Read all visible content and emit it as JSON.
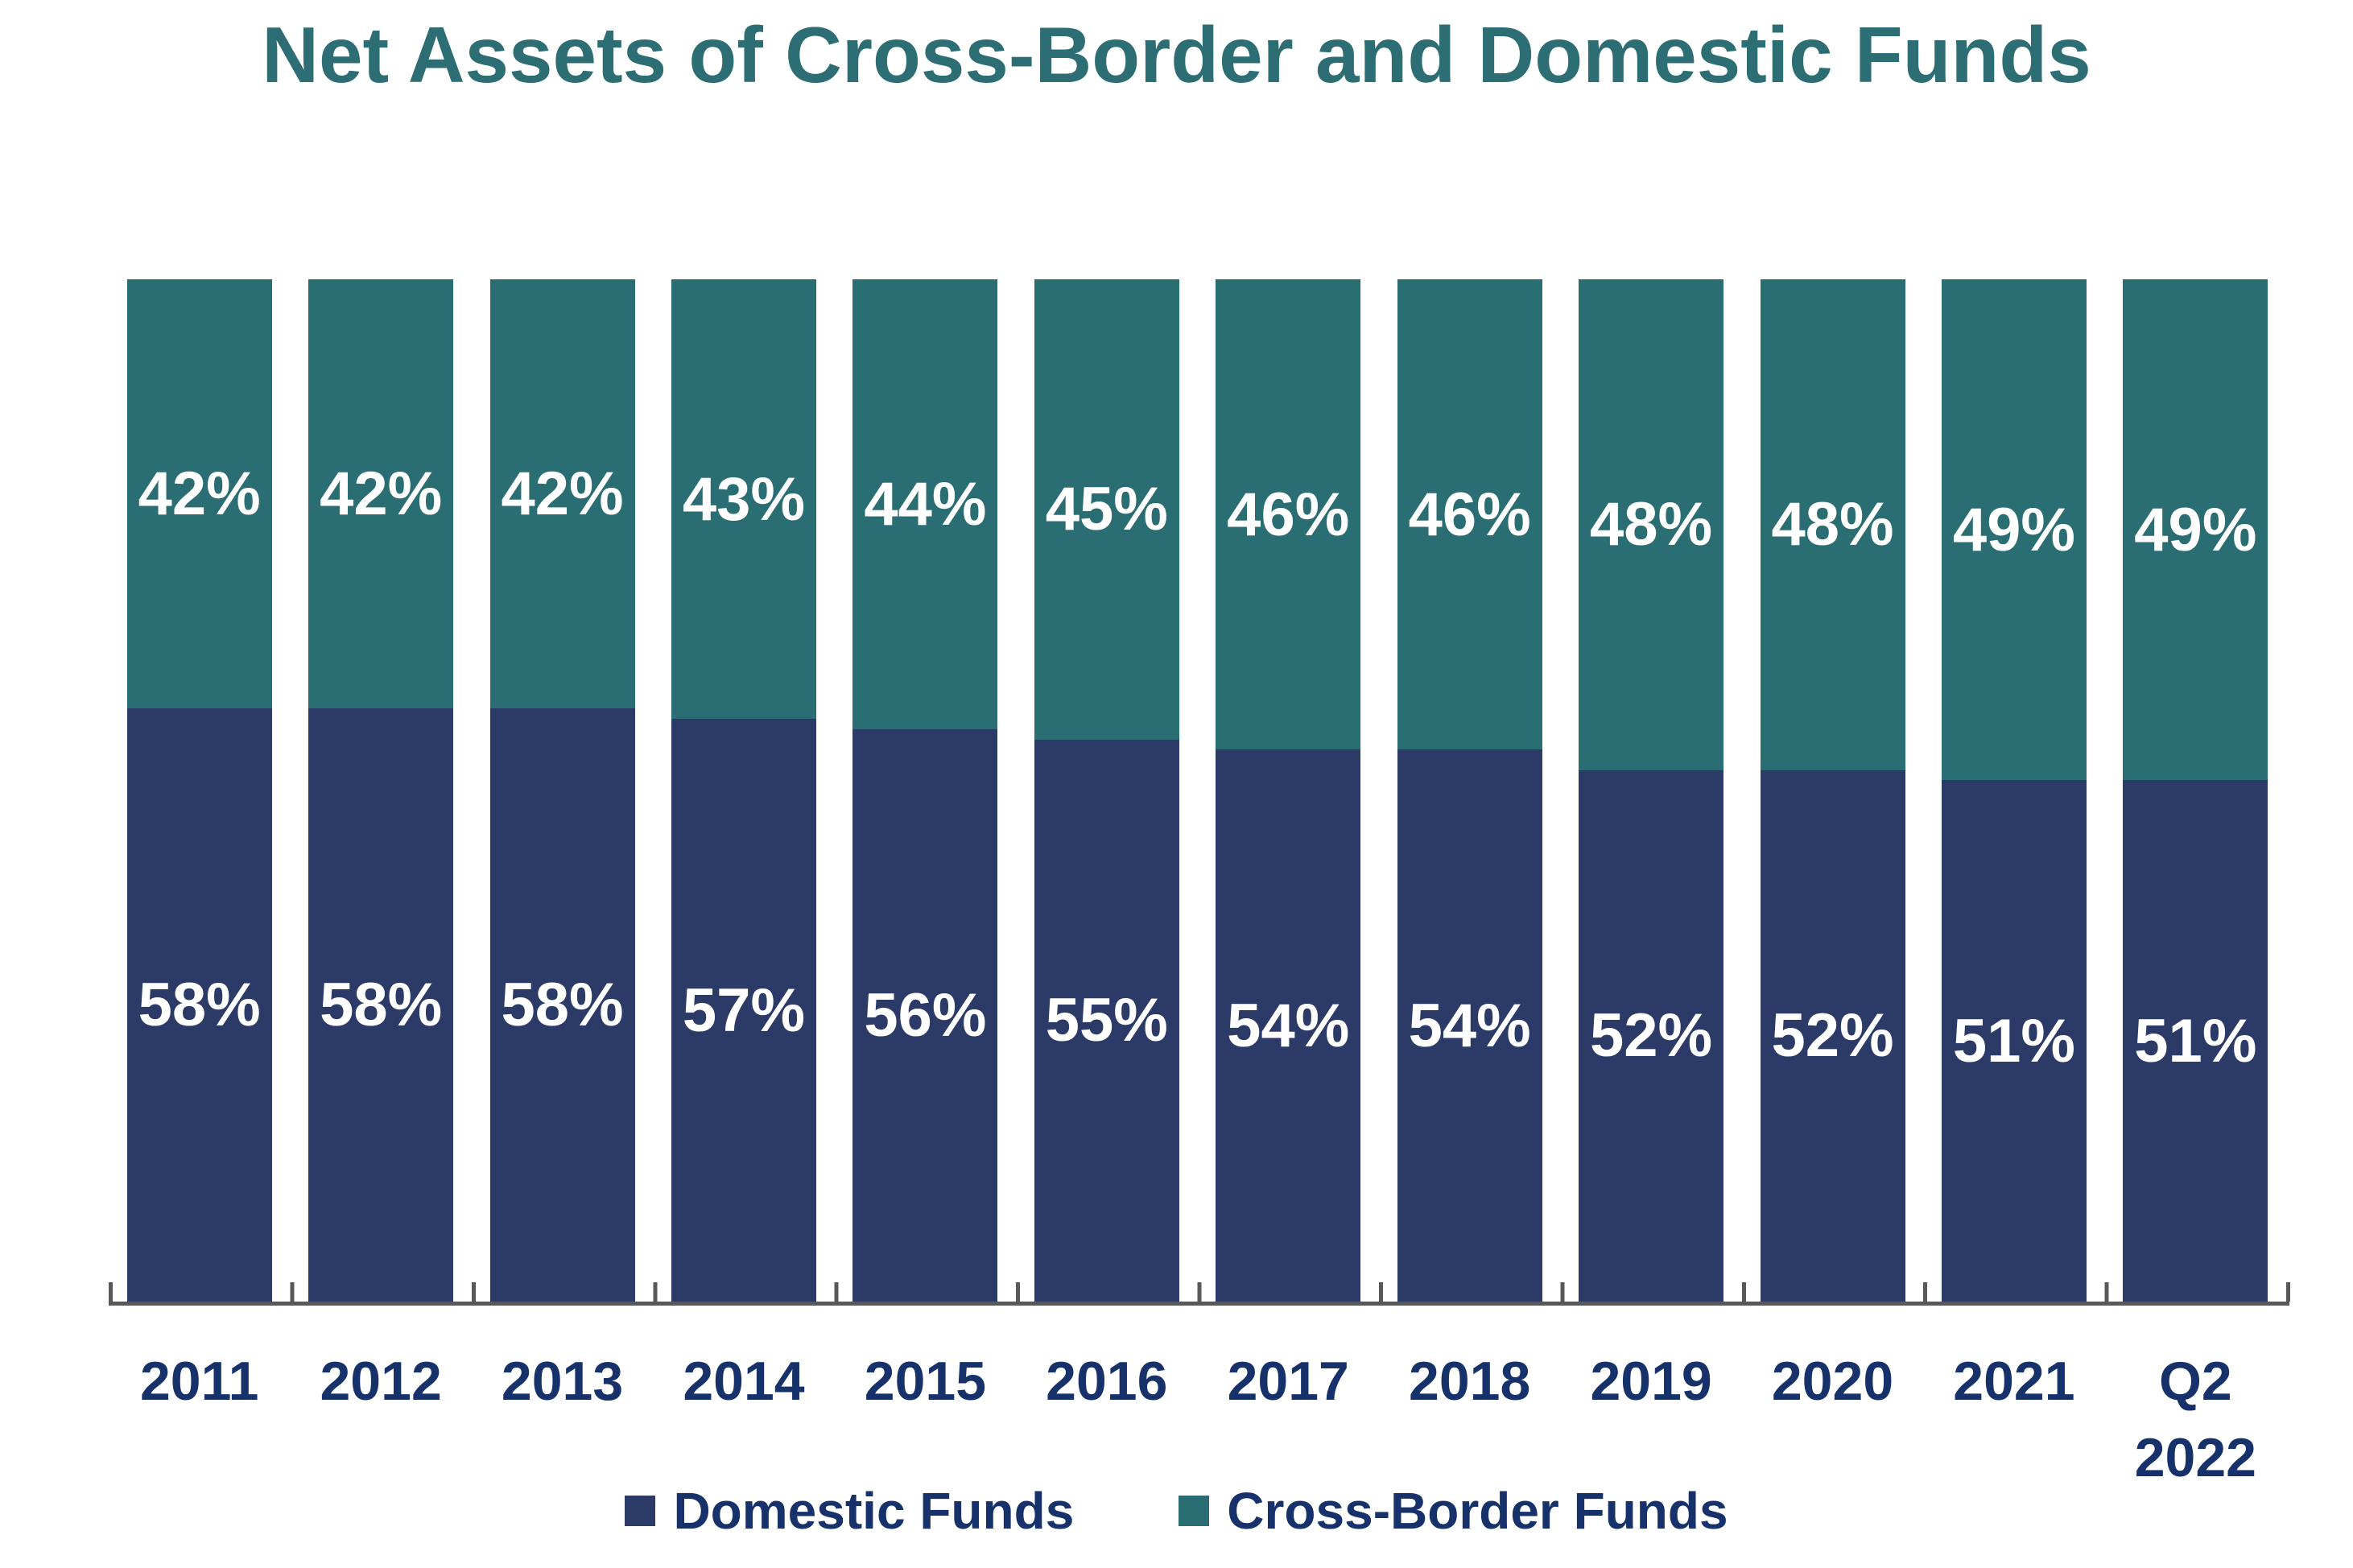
{
  "title": "Net Assets of Cross-Border and Domestic Funds",
  "colors": {
    "title_teal": "#2D6E74",
    "domestic_navy": "#2B3A66",
    "cross_border_teal": "#2A6D72",
    "axis_gray": "#595959",
    "axis_text_navy": "#17326B",
    "bar_label_white": "#ffffff",
    "background": "#ffffff"
  },
  "legend": {
    "position": "bottom",
    "items": [
      {
        "label": "Domestic Funds",
        "color": "#2B3A66"
      },
      {
        "label": "Cross-Border Funds",
        "color": "#2A6D72"
      }
    ]
  },
  "chart_data": {
    "type": "bar",
    "stacked": true,
    "percent_stacked": true,
    "title": "Net Assets of Cross-Border and Domestic Funds",
    "xlabel": "",
    "ylabel": "",
    "ylim": [
      0,
      100
    ],
    "grid": false,
    "y_axis_shown": false,
    "legend_position": "bottom",
    "categories": [
      "2011",
      "2012",
      "2013",
      "2014",
      "2015",
      "2016",
      "2017",
      "2018",
      "2019",
      "2020",
      "2021",
      "Q2\n2022"
    ],
    "series": [
      {
        "name": "Domestic Funds",
        "color": "#2B3A66",
        "stack_order": "bottom",
        "values": [
          58,
          58,
          58,
          57,
          56,
          55,
          54,
          54,
          52,
          52,
          51,
          51
        ],
        "data_labels": [
          "58%",
          "58%",
          "58%",
          "57%",
          "56%",
          "55%",
          "54%",
          "54%",
          "52%",
          "52%",
          "51%",
          "51%"
        ]
      },
      {
        "name": "Cross-Border Funds",
        "color": "#2A6D72",
        "stack_order": "top",
        "values": [
          42,
          42,
          42,
          43,
          44,
          45,
          46,
          46,
          48,
          48,
          49,
          49
        ],
        "data_labels": [
          "42%",
          "42%",
          "42%",
          "43%",
          "44%",
          "45%",
          "46%",
          "46%",
          "48%",
          "48%",
          "49%",
          "49%"
        ]
      }
    ]
  }
}
